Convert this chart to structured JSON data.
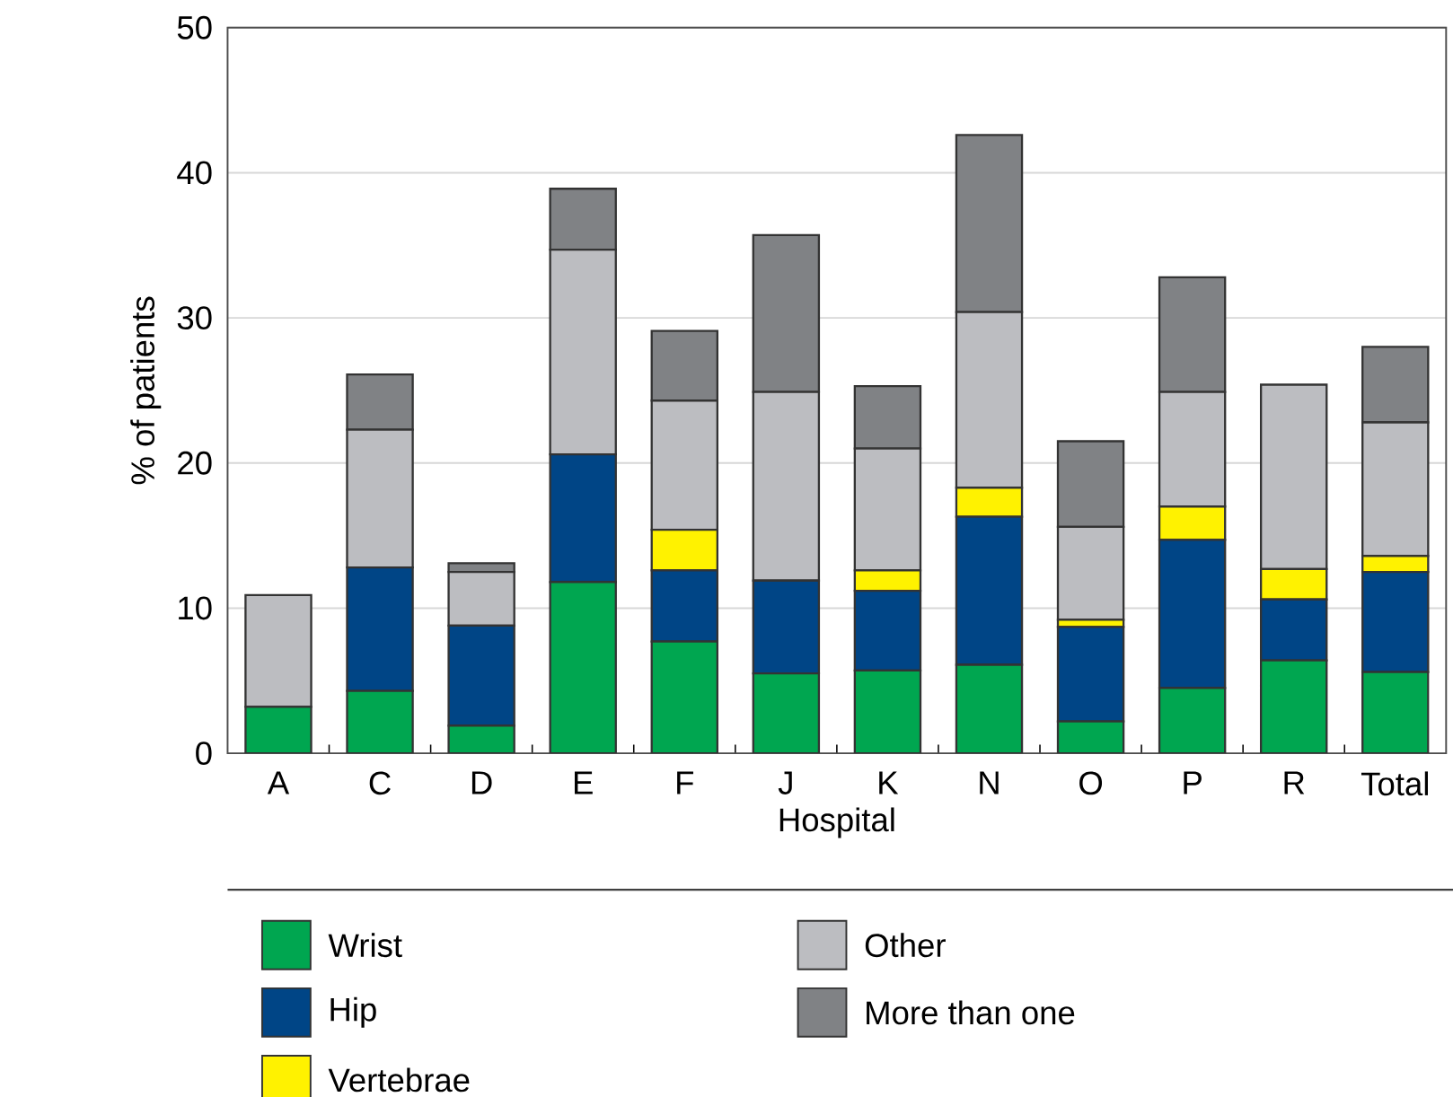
{
  "chart_data": {
    "type": "bar",
    "stacked": true,
    "xlabel": "Hospital",
    "ylabel": "% of patients",
    "categories": [
      "A",
      "C",
      "D",
      "E",
      "F",
      "J",
      "K",
      "N",
      "O",
      "P",
      "R",
      "Total"
    ],
    "series": [
      {
        "name": "Wrist",
        "color": "#00a650",
        "values": [
          3.2,
          4.3,
          1.9,
          11.8,
          7.7,
          5.5,
          5.7,
          6.1,
          2.2,
          4.5,
          6.4,
          5.6
        ]
      },
      {
        "name": "Hip",
        "color": "#004586",
        "values": [
          0,
          8.5,
          6.9,
          8.8,
          4.9,
          6.4,
          5.5,
          10.2,
          6.5,
          10.2,
          4.2,
          6.9
        ]
      },
      {
        "name": "Vertebrae",
        "color": "#fff200",
        "values": [
          0,
          0,
          0,
          0,
          2.8,
          0,
          1.4,
          2.0,
          0.5,
          2.3,
          2.1,
          1.1
        ]
      },
      {
        "name": "Other",
        "color": "#bcbdc1",
        "values": [
          7.7,
          9.5,
          3.7,
          14.1,
          8.9,
          13.0,
          8.4,
          12.1,
          6.4,
          7.9,
          12.7,
          9.2
        ]
      },
      {
        "name": "More than one",
        "color": "#808285",
        "values": [
          0,
          3.8,
          0.6,
          4.2,
          4.8,
          10.8,
          4.3,
          12.2,
          5.9,
          7.9,
          0,
          5.2
        ]
      }
    ],
    "ylim": [
      0,
      50
    ],
    "yticks": [
      0,
      10,
      20,
      30,
      40,
      50
    ],
    "grid": "y",
    "legend": "bottom"
  }
}
